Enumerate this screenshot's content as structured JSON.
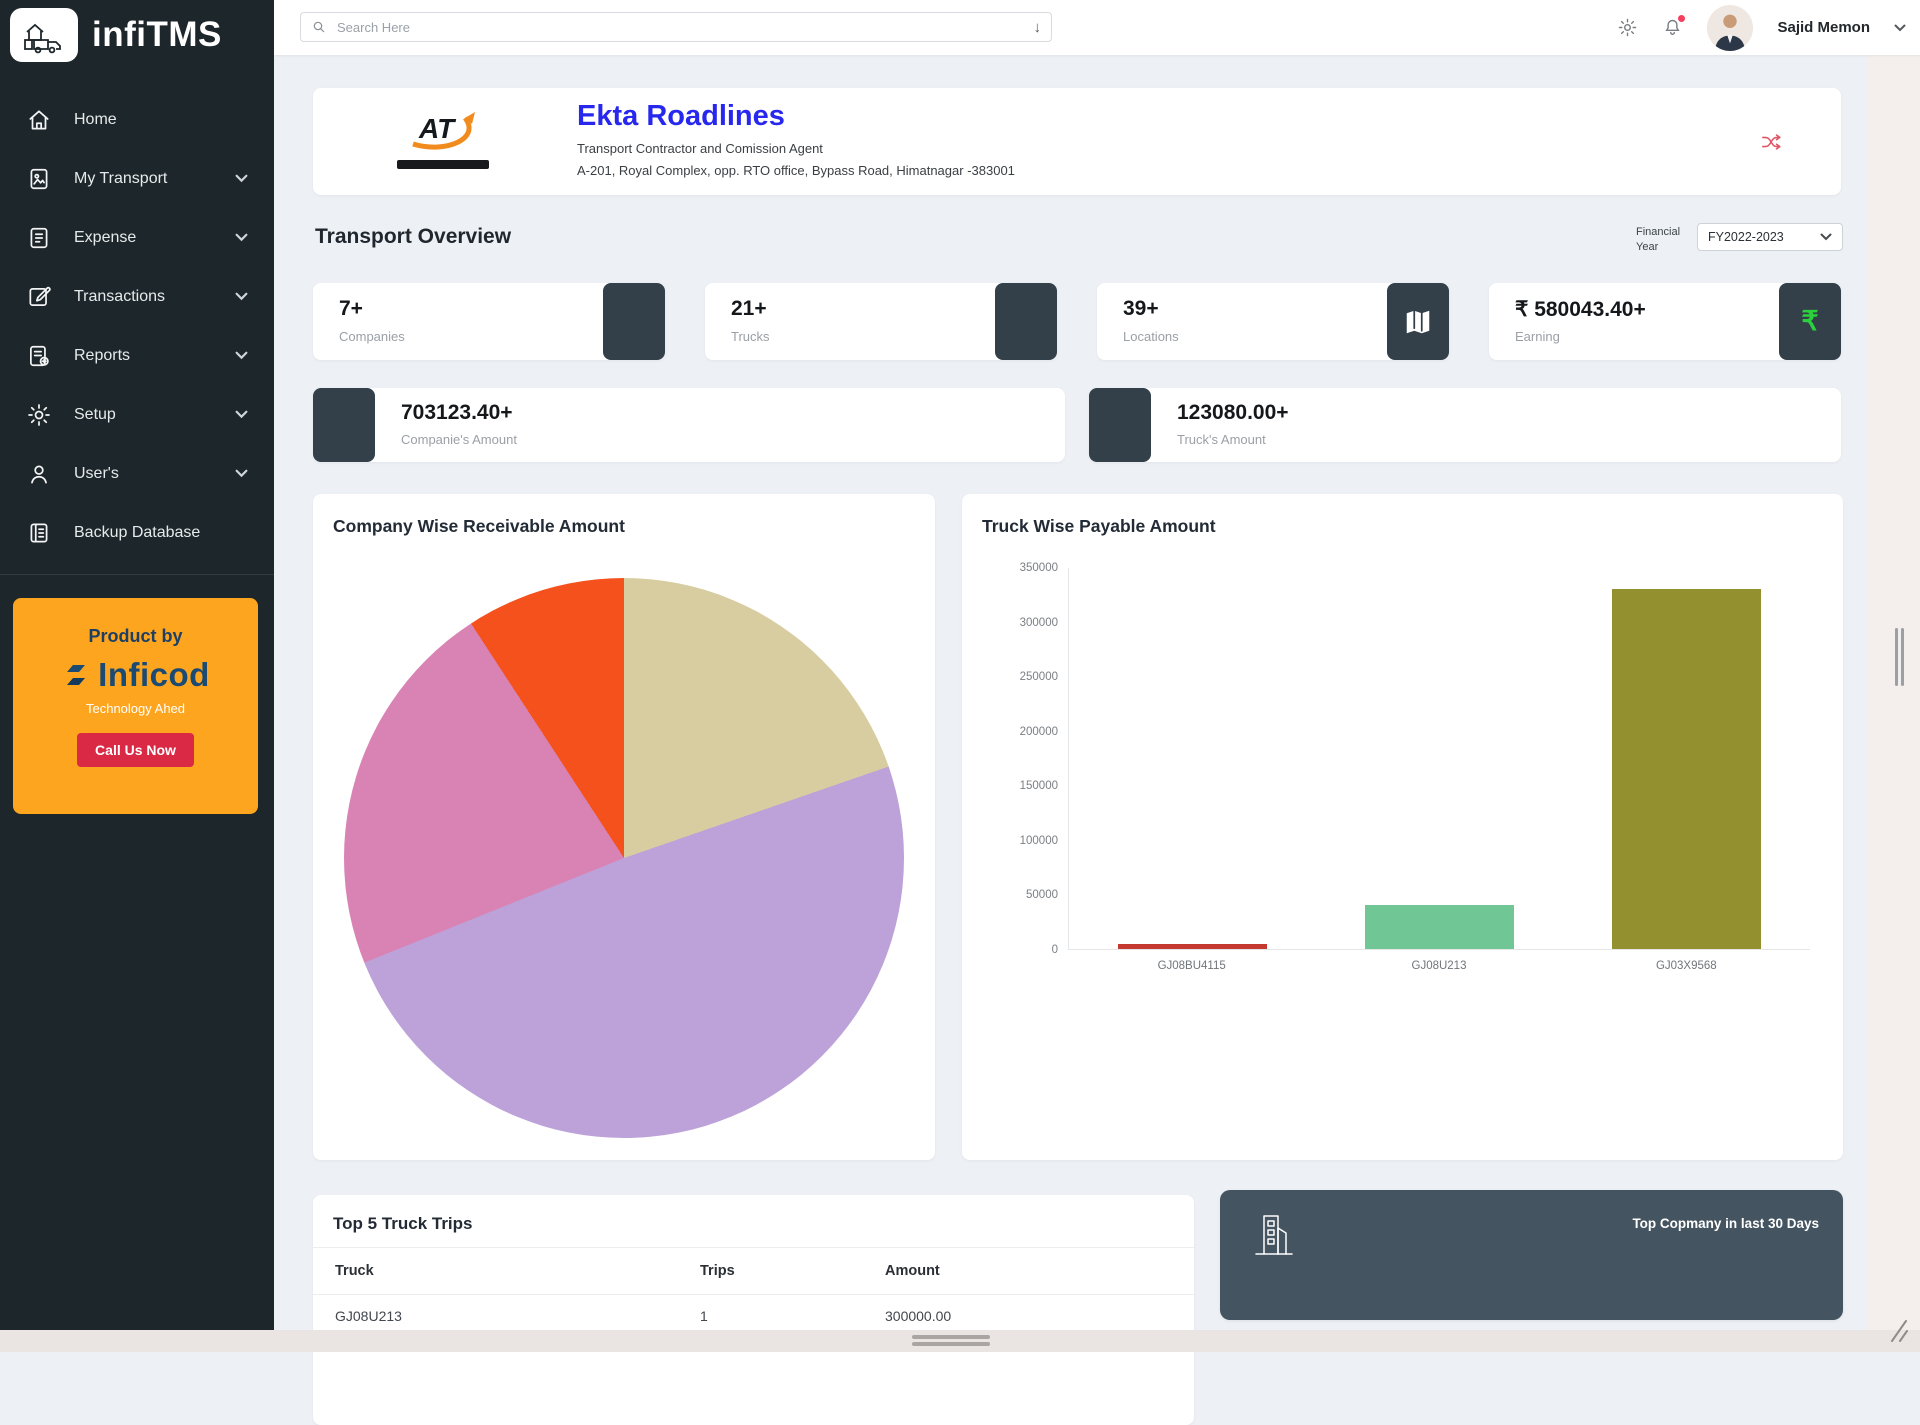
{
  "brand": {
    "name": "infiTMS"
  },
  "sidebar": {
    "items": [
      {
        "label": "Home",
        "icon": "home",
        "chevron": false
      },
      {
        "label": "My Transport",
        "icon": "transport",
        "chevron": true
      },
      {
        "label": "Expense",
        "icon": "expense",
        "chevron": true
      },
      {
        "label": "Transactions",
        "icon": "transactions",
        "chevron": true
      },
      {
        "label": "Reports",
        "icon": "reports",
        "chevron": true
      },
      {
        "label": "Setup",
        "icon": "setup",
        "chevron": true
      },
      {
        "label": "User's",
        "icon": "users",
        "chevron": true
      },
      {
        "label": "Backup Database",
        "icon": "backup",
        "chevron": false
      }
    ],
    "promo": {
      "product_by": "Product by",
      "brand": "Inficod",
      "tagline": "Technology Ahed",
      "cta": "Call Us Now"
    }
  },
  "topbar": {
    "search_placeholder": "Search Here",
    "user_name": "Sajid Memon"
  },
  "company": {
    "logo_text": "AT",
    "name": "Ekta Roadlines",
    "subtitle": "Transport Contractor and Comission Agent",
    "address": "A-201, Royal Complex, opp. RTO office, Bypass Road, Himatnagar -383001"
  },
  "overview": {
    "title": "Transport Overview",
    "financial_year_label": "Financial Year",
    "financial_year_value": "FY2022-2023",
    "stats": [
      {
        "value": "7+",
        "label": "Companies",
        "icon": "building",
        "icon_color": "#1db992"
      },
      {
        "value": "21+",
        "label": "Trucks",
        "icon": "truck",
        "icon_color": "#ee3f57"
      },
      {
        "value": "39+",
        "label": "Locations",
        "icon": "map",
        "icon_color": "#ffffff"
      },
      {
        "value": "₹ 580043.40+",
        "label": "Earning",
        "icon": "rupee",
        "icon_color": "#2bd13c"
      }
    ],
    "amounts": [
      {
        "value": "703123.40+",
        "label": "Companie's Amount",
        "icon": "building",
        "icon_color": "#1db992"
      },
      {
        "value": "123080.00+",
        "label": "Truck's Amount",
        "icon": "truck",
        "icon_color": "#ee3f57"
      }
    ]
  },
  "chart_data": [
    {
      "type": "pie",
      "title": "Company Wise Receivable Amount",
      "legend": "none",
      "slices": [
        {
          "name": "slice-1",
          "color": "#d8cda0",
          "percent": 19.7
        },
        {
          "name": "slice-2",
          "color": "#bca2d8",
          "percent": 49.2
        },
        {
          "name": "slice-3",
          "color": "#d983b5",
          "percent": 21.9
        },
        {
          "name": "slice-4",
          "color": "#f5511d",
          "percent": 9.2
        }
      ]
    },
    {
      "type": "bar",
      "title": "Truck Wise Payable Amount",
      "categories": [
        "GJ08BU4115",
        "GJ08U213",
        "GJ03X9568"
      ],
      "values": [
        5000,
        40000,
        330000
      ],
      "colors": [
        "#c43a31",
        "#70c795",
        "#93902f"
      ],
      "xlabel": "",
      "ylabel": "",
      "ylim": [
        0,
        350000
      ],
      "ytick_step": 50000,
      "grid": false
    }
  ],
  "table": {
    "title": "Top 5 Truck Trips",
    "columns": [
      "Truck",
      "Trips",
      "Amount"
    ],
    "rows": [
      [
        "GJ08U213",
        "1",
        "300000.00"
      ]
    ]
  },
  "top_company": {
    "title": "Top Copmany in last 30 Days"
  }
}
